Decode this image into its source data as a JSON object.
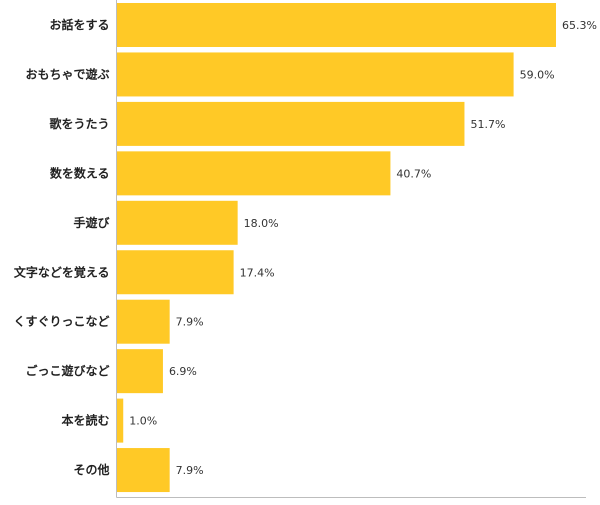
{
  "chart_data": {
    "type": "bar",
    "orientation": "horizontal",
    "categories": [
      "お話をする",
      "おもちゃで遊ぶ",
      "歌をうたう",
      "数を数える",
      "手遊び",
      "文字などを覚える",
      "くすぐりっこなど",
      "ごっこ遊びなど",
      "本を読む",
      "その他"
    ],
    "values": [
      65.3,
      59.0,
      51.7,
      40.7,
      18.0,
      17.4,
      7.9,
      6.9,
      1.0,
      7.9
    ],
    "value_labels": [
      "65.3%",
      "59.0%",
      "51.7%",
      "40.7%",
      "18.0%",
      "17.4%",
      "7.9%",
      "6.9%",
      "1.0%",
      "7.9%"
    ],
    "xlim": [
      0,
      70
    ],
    "grid": false,
    "bar_color": "#FFC926",
    "axis_color": "#BDBDBD"
  }
}
